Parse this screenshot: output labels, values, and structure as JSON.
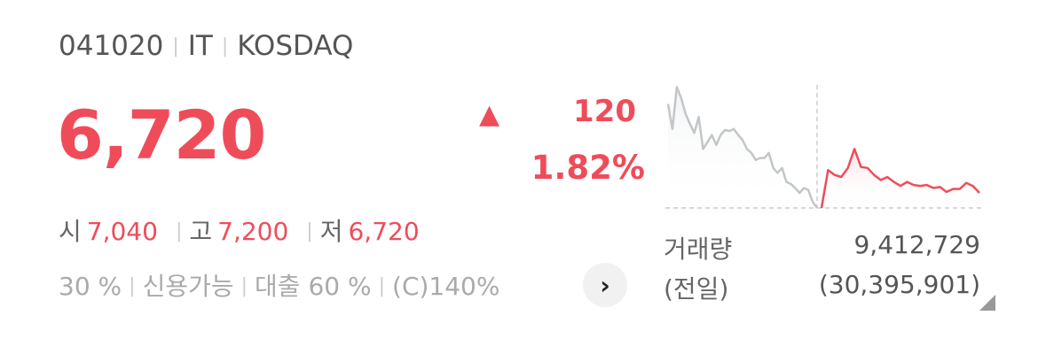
{
  "header": {
    "code": "041020",
    "sector": "IT",
    "market": "KOSDAQ"
  },
  "price": {
    "current": "6,720",
    "direction_icon": "triangle-up-icon",
    "change": "120",
    "change_pct": "1.82%",
    "color": "#ef4c5a"
  },
  "ohl": {
    "open_label": "시",
    "open": "7,040",
    "high_label": "고",
    "high": "7,200",
    "low_label": "저",
    "low": "6,720"
  },
  "margin": {
    "rate": "30 %",
    "credit": "신용가능",
    "loan": "대출 60 %",
    "c_rate": "(C)140%",
    "more_icon": "chevron-right-icon"
  },
  "volume": {
    "label": "거래량",
    "value": "9,412,729",
    "prev_label": "(전일)",
    "prev_value": "(30,395,901)"
  },
  "chart_data": {
    "type": "line",
    "ylim": [
      6600,
      7830
    ],
    "reference_line": 6600,
    "series": [
      {
        "role": "previous-day",
        "color": "#c3c6c8",
        "values": [
          7640,
          7390,
          7810,
          7700,
          7540,
          7440,
          7350,
          7510,
          7190,
          7260,
          7330,
          7230,
          7330,
          7380,
          7370,
          7390,
          7330,
          7280,
          7190,
          7150,
          7080,
          7100,
          7100,
          7150,
          7000,
          6950,
          7000,
          6860,
          6840,
          6800,
          6750,
          6800,
          6780,
          6660,
          6600
        ]
      },
      {
        "role": "today",
        "color": "#ef4c5a",
        "values": [
          6600,
          6980,
          6930,
          6910,
          7000,
          7190,
          7010,
          7000,
          6930,
          6880,
          6910,
          6860,
          6820,
          6860,
          6830,
          6820,
          6830,
          6800,
          6810,
          6760,
          6790,
          6790,
          6850,
          6820,
          6750
        ]
      }
    ]
  }
}
